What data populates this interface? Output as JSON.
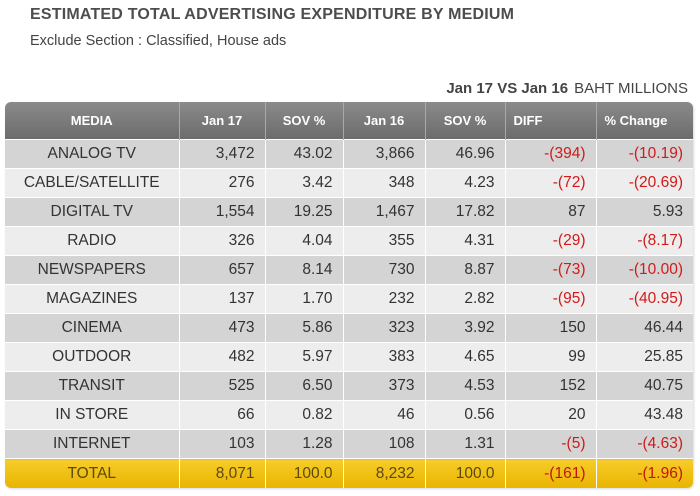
{
  "title": "ESTIMATED TOTAL ADVERTISING EXPENDITURE BY MEDIUM",
  "subtitle": "Exclude Section : Classified, House ads",
  "comparison": "Jan 17 VS Jan 16",
  "units": "BAHT MILLIONS",
  "chart_data": {
    "type": "table",
    "title": "ESTIMATED TOTAL ADVERTISING EXPENDITURE BY MEDIUM",
    "subtitle": "Exclude Section : Classified, House ads",
    "columns": [
      "MEDIA",
      "Jan 17",
      "SOV %",
      "Jan 16",
      "SOV %",
      "DIFF",
      "% Change"
    ],
    "rows": [
      [
        "ANALOG   TV",
        "3,472",
        "43.02",
        "3,866",
        "46.96",
        "-(394)",
        "-(10.19)"
      ],
      [
        "CABLE/SATELLITE",
        "276",
        "3.42",
        "348",
        "4.23",
        "-(72)",
        "-(20.69)"
      ],
      [
        "DIGITAL TV",
        "1,554",
        "19.25",
        "1,467",
        "17.82",
        "87",
        "5.93"
      ],
      [
        "RADIO",
        "326",
        "4.04",
        "355",
        "4.31",
        "-(29)",
        "-(8.17)"
      ],
      [
        "NEWSPAPERS",
        "657",
        "8.14",
        "730",
        "8.87",
        "-(73)",
        "-(10.00)"
      ],
      [
        "MAGAZINES",
        "137",
        "1.70",
        "232",
        "2.82",
        "-(95)",
        "-(40.95)"
      ],
      [
        "CINEMA",
        "473",
        "5.86",
        "323",
        "3.92",
        "150",
        "46.44"
      ],
      [
        "OUTDOOR",
        "482",
        "5.97",
        "383",
        "4.65",
        "99",
        "25.85"
      ],
      [
        "TRANSIT",
        "525",
        "6.50",
        "373",
        "4.53",
        "152",
        "40.75"
      ],
      [
        "IN STORE",
        "66",
        "0.82",
        "46",
        "0.56",
        "20",
        "43.48"
      ],
      [
        "INTERNET",
        "103",
        "1.28",
        "108",
        "1.31",
        "-(5)",
        "-(4.63)"
      ]
    ],
    "total": [
      "TOTAL",
      "8,071",
      "100.0",
      "8,232",
      "100.0",
      "-(161)",
      "-(1.96)"
    ]
  },
  "colors": {
    "header_bg": "#7a7a7a",
    "row_odd": "#d4d4d4",
    "row_even": "#ededed",
    "total_bg": "#f0c01a",
    "negative": "#d11a1a"
  }
}
